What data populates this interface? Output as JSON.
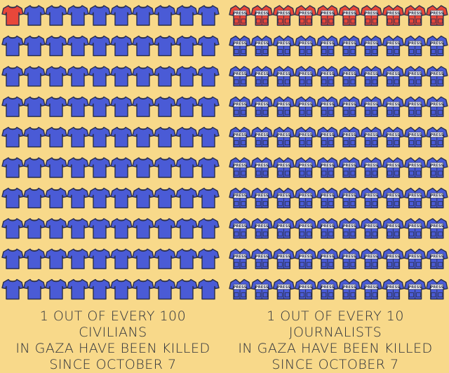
{
  "colors": {
    "background": "#f8d98a",
    "highlight": "#e8473a",
    "base": "#4a5bd6",
    "outline": "#2b2f4a"
  },
  "icons": {
    "left": "tshirt-icon",
    "right": "press-vest-icon"
  },
  "press_label": "PRESS",
  "chart_data": [
    {
      "type": "pictogram",
      "grid": {
        "columns": 10,
        "rows": 10
      },
      "total": 100,
      "highlighted": 1,
      "highlight_color": "#e8473a",
      "base_color": "#4a5bd6",
      "icon": "tshirt-icon",
      "caption_lines": [
        "1 OUT OF EVERY 100 CIVILIANS",
        "IN GAZA HAVE BEEN KILLED",
        "SINCE OCTOBER 7"
      ]
    },
    {
      "type": "pictogram",
      "grid": {
        "columns": 10,
        "rows": 10
      },
      "total": 100,
      "highlighted": 10,
      "highlight_color": "#e8473a",
      "base_color": "#4a5bd6",
      "icon": "press-vest-icon",
      "caption_lines": [
        "1 OUT OF EVERY 10 JOURNALISTS",
        "IN GAZA HAVE BEEN KILLED",
        "SINCE OCTOBER 7"
      ]
    }
  ]
}
